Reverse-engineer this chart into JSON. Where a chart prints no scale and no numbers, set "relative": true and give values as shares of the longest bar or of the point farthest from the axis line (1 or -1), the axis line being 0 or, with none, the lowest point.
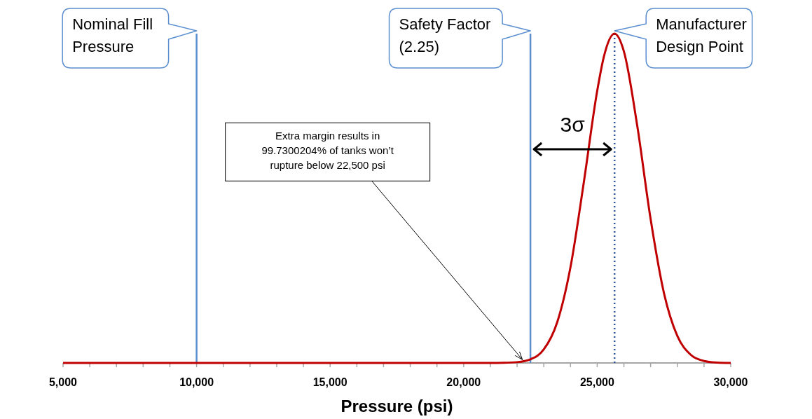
{
  "chart_data": {
    "type": "line",
    "relative": true,
    "xlabel": "Pressure (psi)",
    "x": [
      5000,
      19000,
      20000,
      21000,
      21500,
      22000,
      22500,
      23000,
      23500,
      24000,
      24500,
      25000,
      25250,
      25650,
      26000,
      26500,
      27000,
      27500,
      28000,
      28500,
      29000,
      29500,
      30000
    ],
    "series": [
      {
        "color": "#c00000",
        "values": [
          0,
          0,
          0,
          0,
          0.0004,
          0.0024,
          0.011,
          0.041,
          0.123,
          0.291,
          0.549,
          0.826,
          0.93,
          1,
          0.946,
          0.72,
          0.437,
          0.212,
          0.082,
          0.025,
          0.006,
          0.001,
          0
        ]
      }
    ],
    "xlim": [
      5000,
      30000
    ],
    "xticks": [
      {
        "value": 5000,
        "label": "5,000"
      },
      {
        "value": 6000,
        "label": null
      },
      {
        "value": 7000,
        "label": null
      },
      {
        "value": 8000,
        "label": null
      },
      {
        "value": 9000,
        "label": null
      },
      {
        "value": 10000,
        "label": "10,000"
      },
      {
        "value": 11000,
        "label": null
      },
      {
        "value": 12000,
        "label": null
      },
      {
        "value": 13000,
        "label": null
      },
      {
        "value": 14000,
        "label": null
      },
      {
        "value": 15000,
        "label": "15,000"
      },
      {
        "value": 16000,
        "label": null
      },
      {
        "value": 17000,
        "label": null
      },
      {
        "value": 18000,
        "label": null
      },
      {
        "value": 19000,
        "label": null
      },
      {
        "value": 20000,
        "label": "20,000"
      },
      {
        "value": 21000,
        "label": null
      },
      {
        "value": 22000,
        "label": null
      },
      {
        "value": 23000,
        "label": null
      },
      {
        "value": 24000,
        "label": null
      },
      {
        "value": 25000,
        "label": "25,000"
      },
      {
        "value": 26000,
        "label": null
      },
      {
        "value": 27000,
        "label": null
      },
      {
        "value": 28000,
        "label": null
      },
      {
        "value": 29000,
        "label": null
      },
      {
        "value": 30000,
        "label": "30,000"
      }
    ],
    "ref_lines": [
      {
        "axis": "x",
        "value": 10000,
        "label": "Nominal Fill Pressure",
        "color": "#5b8fd0",
        "line_style": "solid"
      },
      {
        "axis": "x",
        "value": 22500,
        "label": "Safety Factor (2.25)",
        "color": "#5b8fd0",
        "line_style": "solid"
      },
      {
        "axis": "x",
        "value": 25650,
        "label": "Manufacturer Design Point",
        "color": "#2f5597",
        "line_style": "dotted"
      }
    ],
    "annotations": [
      {
        "text": "Extra margin results in 99.7300204% of tanks won’t rupture below 22,500 psi",
        "x": 22200,
        "y": 0.01
      },
      "3σ"
    ]
  }
}
